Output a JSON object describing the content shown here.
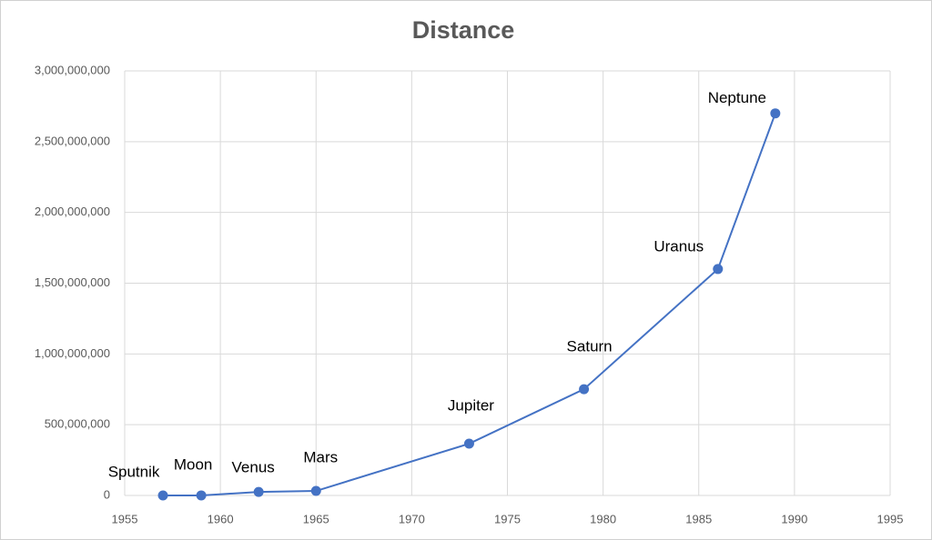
{
  "chart_data": {
    "type": "line",
    "title": "Distance",
    "x": [
      1957,
      1959,
      1962,
      1965,
      1973,
      1979,
      1986,
      1989
    ],
    "point_labels": [
      "Sputnik",
      "Moon",
      "Venus",
      "Mars",
      "Jupiter",
      "Saturn",
      "Uranus",
      "Neptune"
    ],
    "series": [
      {
        "name": "Distance",
        "color": "#4472c4",
        "values": [
          0,
          384400,
          25000000,
          32000000,
          366000000,
          751000000,
          1600000000,
          2700000000
        ]
      }
    ],
    "xlim": [
      1955,
      1995
    ],
    "xticks": [
      1955,
      1960,
      1965,
      1970,
      1975,
      1980,
      1985,
      1990,
      1995
    ],
    "ylim": [
      0,
      3000000000
    ],
    "yticks": [
      0,
      {
        "value": 500000000,
        "label": "500,000,000"
      },
      {
        "value": 1000000000,
        "label": "1,000,000,000"
      },
      {
        "value": 1500000000,
        "label": "1,500,000,000"
      },
      {
        "value": 2000000000,
        "label": "2,000,000,000"
      },
      {
        "value": 2500000000,
        "label": "2,500,000,000"
      },
      {
        "value": 3000000000,
        "label": "3,000,000,000"
      }
    ],
    "grid": true
  }
}
